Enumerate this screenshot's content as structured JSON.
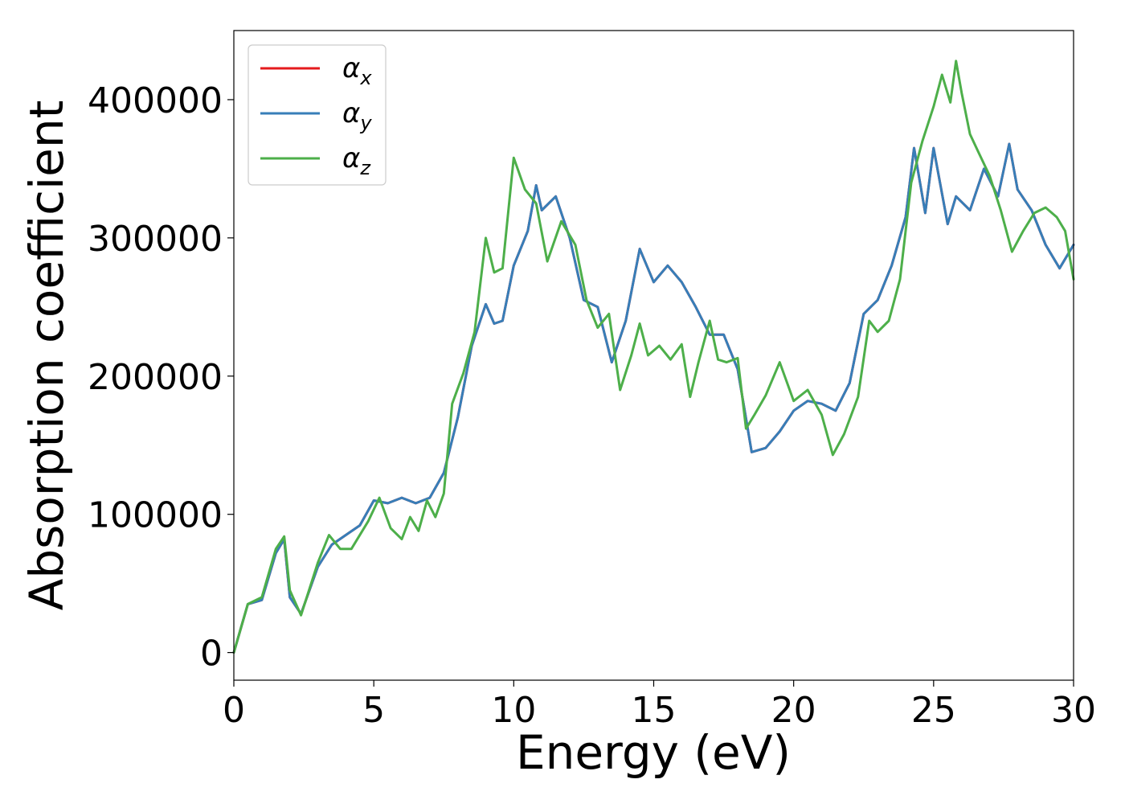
{
  "chart_data": {
    "type": "line",
    "title": "",
    "xlabel": "Energy (eV)",
    "ylabel": "Absorption coefficient",
    "xlim": [
      0,
      30
    ],
    "ylim": [
      -20000,
      450000
    ],
    "xticks": [
      0,
      5,
      10,
      15,
      20,
      25,
      30
    ],
    "yticks": [
      0,
      100000,
      200000,
      300000,
      400000
    ],
    "grid": false,
    "legend_position": "top-left",
    "series": [
      {
        "name": "α",
        "sub": "x",
        "color": "#e41a1c",
        "x": [
          0,
          0.5,
          1.0,
          1.5,
          1.8,
          2.0,
          2.4,
          3.0,
          3.5,
          4.0,
          4.5,
          5.0,
          5.5,
          6.0,
          6.5,
          7.0,
          7.5,
          8.0,
          8.5,
          9.0,
          9.3,
          9.6,
          10.0,
          10.5,
          10.8,
          11.0,
          11.5,
          12.0,
          12.5,
          13.0,
          13.5,
          14.0,
          14.5,
          15.0,
          15.5,
          16.0,
          16.5,
          17.0,
          17.5,
          18.0,
          18.5,
          19.0,
          19.5,
          20.0,
          20.5,
          21.0,
          21.5,
          22.0,
          22.5,
          23.0,
          23.5,
          24.0,
          24.3,
          24.7,
          25.0,
          25.5,
          25.8,
          26.3,
          26.8,
          27.3,
          27.7,
          28.0,
          28.5,
          29.0,
          29.5,
          30.0
        ],
        "y": [
          0,
          35000,
          38000,
          72000,
          82000,
          40000,
          28000,
          62000,
          78000,
          85000,
          92000,
          110000,
          108000,
          112000,
          108000,
          112000,
          130000,
          170000,
          222000,
          252000,
          238000,
          240000,
          280000,
          305000,
          338000,
          320000,
          330000,
          300000,
          255000,
          250000,
          210000,
          240000,
          292000,
          268000,
          280000,
          268000,
          250000,
          230000,
          230000,
          205000,
          145000,
          148000,
          160000,
          175000,
          182000,
          180000,
          175000,
          195000,
          245000,
          255000,
          280000,
          315000,
          365000,
          318000,
          365000,
          310000,
          330000,
          320000,
          350000,
          330000,
          368000,
          335000,
          320000,
          295000,
          278000,
          295000
        ]
      },
      {
        "name": "α",
        "sub": "y",
        "color": "#377eb8",
        "x": [
          0,
          0.5,
          1.0,
          1.5,
          1.8,
          2.0,
          2.4,
          3.0,
          3.5,
          4.0,
          4.5,
          5.0,
          5.5,
          6.0,
          6.5,
          7.0,
          7.5,
          8.0,
          8.5,
          9.0,
          9.3,
          9.6,
          10.0,
          10.5,
          10.8,
          11.0,
          11.5,
          12.0,
          12.5,
          13.0,
          13.5,
          14.0,
          14.5,
          15.0,
          15.5,
          16.0,
          16.5,
          17.0,
          17.5,
          18.0,
          18.5,
          19.0,
          19.5,
          20.0,
          20.5,
          21.0,
          21.5,
          22.0,
          22.5,
          23.0,
          23.5,
          24.0,
          24.3,
          24.7,
          25.0,
          25.5,
          25.8,
          26.3,
          26.8,
          27.3,
          27.7,
          28.0,
          28.5,
          29.0,
          29.5,
          30.0
        ],
        "y": [
          0,
          35000,
          38000,
          72000,
          82000,
          40000,
          28000,
          62000,
          78000,
          85000,
          92000,
          110000,
          108000,
          112000,
          108000,
          112000,
          130000,
          170000,
          222000,
          252000,
          238000,
          240000,
          280000,
          305000,
          338000,
          320000,
          330000,
          300000,
          255000,
          250000,
          210000,
          240000,
          292000,
          268000,
          280000,
          268000,
          250000,
          230000,
          230000,
          205000,
          145000,
          148000,
          160000,
          175000,
          182000,
          180000,
          175000,
          195000,
          245000,
          255000,
          280000,
          315000,
          365000,
          318000,
          365000,
          310000,
          330000,
          320000,
          350000,
          330000,
          368000,
          335000,
          320000,
          295000,
          278000,
          295000
        ]
      },
      {
        "name": "α",
        "sub": "z",
        "color": "#4daf4a",
        "x": [
          0,
          0.5,
          1.0,
          1.5,
          1.8,
          2.0,
          2.4,
          3.0,
          3.4,
          3.8,
          4.2,
          4.8,
          5.2,
          5.6,
          6.0,
          6.3,
          6.6,
          6.9,
          7.2,
          7.5,
          7.8,
          8.2,
          8.6,
          9.0,
          9.3,
          9.6,
          10.0,
          10.4,
          10.8,
          11.2,
          11.7,
          12.2,
          12.6,
          13.0,
          13.4,
          13.8,
          14.2,
          14.5,
          14.8,
          15.2,
          15.6,
          16.0,
          16.3,
          16.6,
          17.0,
          17.3,
          17.6,
          18.0,
          18.3,
          18.6,
          19.0,
          19.5,
          20.0,
          20.5,
          21.0,
          21.4,
          21.8,
          22.3,
          22.7,
          23.0,
          23.4,
          23.8,
          24.2,
          24.6,
          25.0,
          25.3,
          25.6,
          25.8,
          26.0,
          26.3,
          26.6,
          27.0,
          27.4,
          27.8,
          28.2,
          28.6,
          29.0,
          29.4,
          29.7,
          30.0
        ],
        "y": [
          0,
          35000,
          40000,
          75000,
          84000,
          45000,
          27000,
          65000,
          85000,
          75000,
          75000,
          95000,
          112000,
          90000,
          82000,
          98000,
          88000,
          110000,
          98000,
          115000,
          180000,
          202000,
          232000,
          300000,
          275000,
          278000,
          358000,
          335000,
          325000,
          283000,
          312000,
          295000,
          255000,
          235000,
          245000,
          190000,
          215000,
          238000,
          215000,
          222000,
          212000,
          223000,
          185000,
          210000,
          240000,
          212000,
          210000,
          213000,
          162000,
          172000,
          186000,
          210000,
          182000,
          190000,
          172000,
          143000,
          158000,
          185000,
          240000,
          232000,
          240000,
          270000,
          340000,
          370000,
          395000,
          418000,
          398000,
          428000,
          405000,
          375000,
          362000,
          345000,
          320000,
          290000,
          305000,
          318000,
          322000,
          315000,
          305000,
          270000
        ]
      }
    ]
  }
}
